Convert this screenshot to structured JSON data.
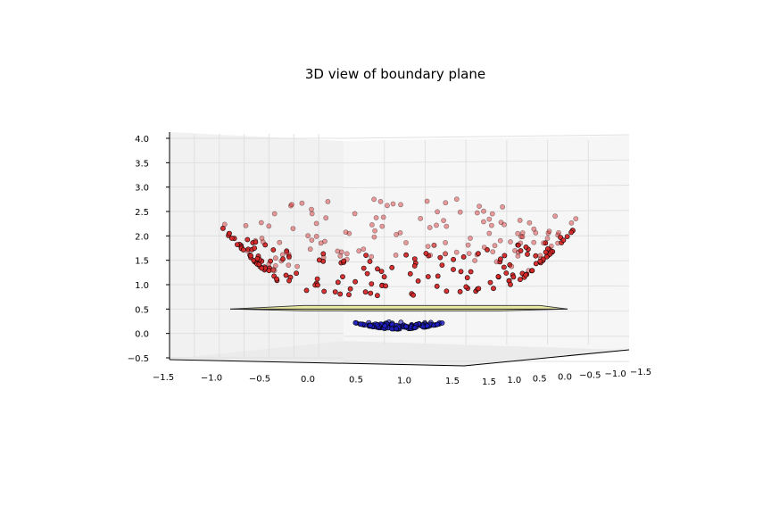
{
  "chart_data": {
    "type": "scatter",
    "title": "3D view of boundary plane",
    "z_ticks": [
      "4.0",
      "3.5",
      "3.0",
      "2.5",
      "2.0",
      "1.5",
      "1.0",
      "0.5",
      "0.0",
      "−0.5"
    ],
    "x_ticks": [
      "−1.5",
      "−1.0",
      "−0.5",
      "0.0",
      "0.5",
      "1.0",
      "1.5"
    ],
    "y_ticks": [
      "1.5",
      "1.0",
      "0.5",
      "0.0",
      "−0.5",
      "−1.0",
      "−1.5"
    ],
    "xlim": [
      -1.5,
      1.5
    ],
    "ylim": [
      -1.5,
      1.5
    ],
    "zlim": [
      -0.5,
      4.0
    ],
    "plane_z": 0.5,
    "colors": {
      "outer_points": "#d62728",
      "inner_points": "#1f1fc8",
      "plane": "#e8e89a",
      "plane_edge": "#333333",
      "pane": "#f0f0f0",
      "grid": "#e0e0e0"
    },
    "series": [
      {
        "count": 300,
        "z_formula": "x^2 + y^2 (radius 1.0–1.45)",
        "color": "#d62728"
      },
      {
        "count": 120,
        "z_formula": "x^2 + y^2 (radius ≤ 0.4)",
        "color": "#1f1fc8"
      }
    ]
  }
}
